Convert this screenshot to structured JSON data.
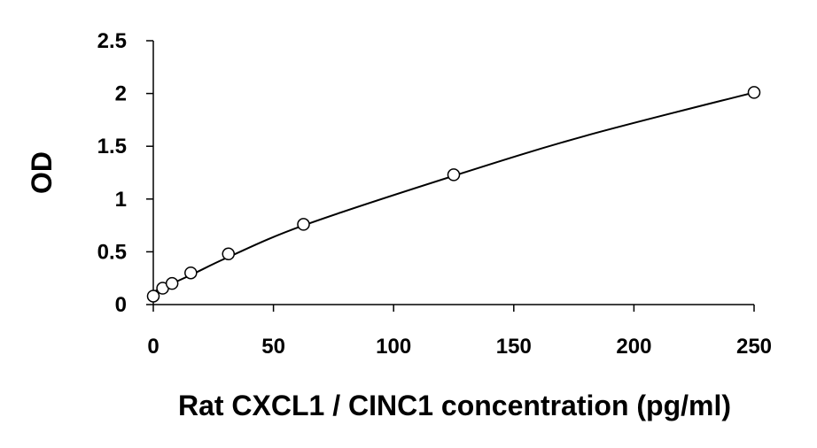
{
  "chart_data": {
    "type": "scatter",
    "title": "",
    "xlabel": "Rat CXCL1 / CINC1 concentration (pg/ml)",
    "ylabel": "OD",
    "xlim": [
      0,
      250
    ],
    "ylim": [
      0,
      2.5
    ],
    "x_ticks": [
      "0",
      "50",
      "100",
      "150",
      "200",
      "250"
    ],
    "y_ticks": [
      "0",
      "0.5",
      "1",
      "1.5",
      "2",
      "2.5"
    ],
    "grid": false,
    "legend": "none",
    "series": [
      {
        "marker": "open-circle",
        "x": [
          0,
          3.9,
          7.8,
          15.6,
          31.25,
          62.5,
          125,
          250
        ],
        "y": [
          0.08,
          0.155,
          0.2,
          0.3,
          0.48,
          0.76,
          1.23,
          2.01
        ]
      }
    ],
    "fit_curve": {
      "type": "smooth-curve",
      "x": [
        0,
        15.6,
        31.25,
        62.5,
        125,
        180,
        250
      ],
      "y": [
        0.12,
        0.28,
        0.45,
        0.75,
        1.22,
        1.6,
        2.01
      ]
    },
    "colors": {
      "axis": "#000000",
      "marker": "#000000",
      "line": "#000000"
    }
  }
}
